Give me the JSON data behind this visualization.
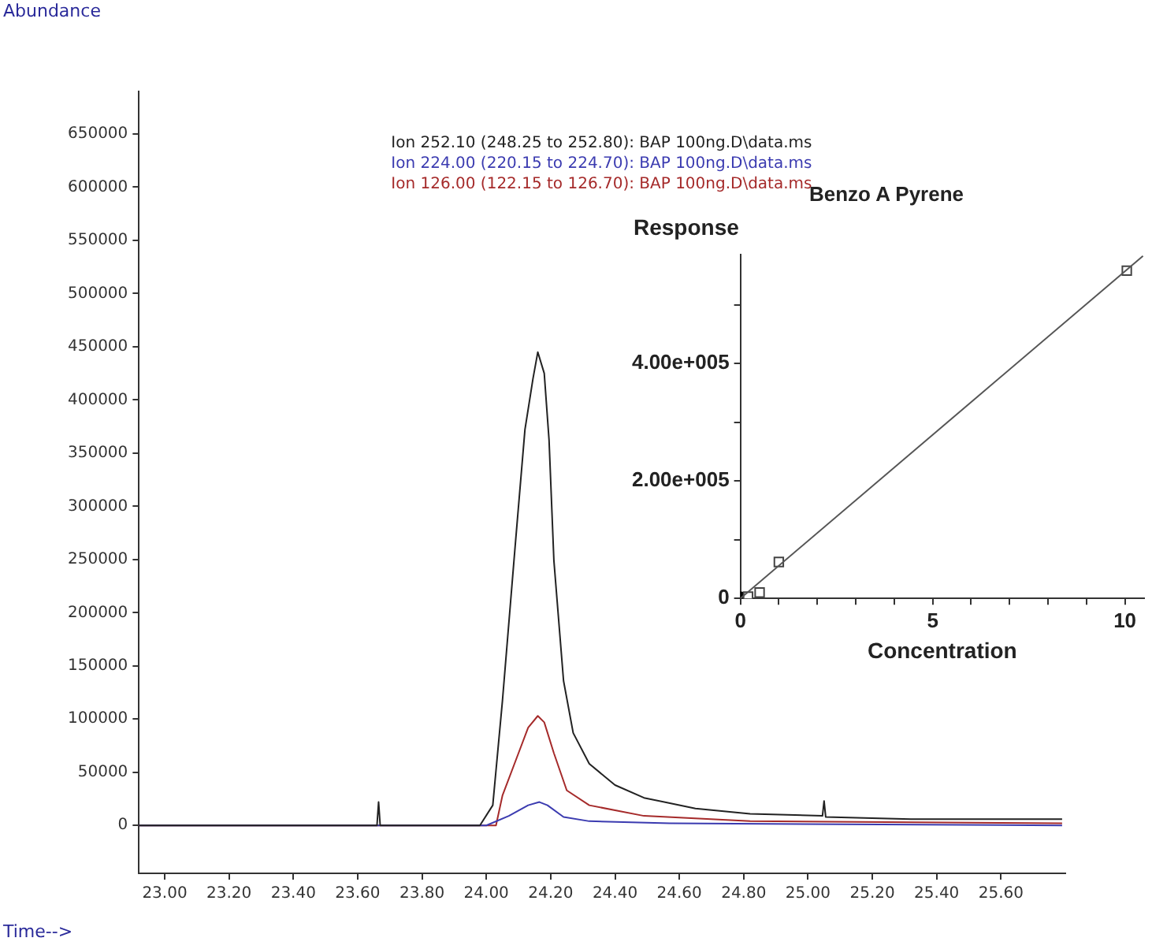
{
  "chart_data": [
    {
      "type": "line",
      "xlabel": "Time-->",
      "ylabel": "Abundance",
      "legend": "top",
      "grid": false,
      "xlim": [
        22.92,
        25.8
      ],
      "xticks": [
        {
          "value": 23,
          "label": "23.00"
        },
        {
          "value": 23.2,
          "label": "23.20"
        },
        {
          "value": 23.4,
          "label": "23.40"
        },
        {
          "value": 23.6,
          "label": "23.60"
        },
        {
          "value": 23.8,
          "label": "23.80"
        },
        {
          "value": 24,
          "label": "24.00"
        },
        {
          "value": 24.2,
          "label": "24.20"
        },
        {
          "value": 24.4,
          "label": "24.40"
        },
        {
          "value": 24.6,
          "label": "24.60"
        },
        {
          "value": 24.8,
          "label": "24.80"
        },
        {
          "value": 25,
          "label": "25.00"
        },
        {
          "value": 25.2,
          "label": "25.20"
        },
        {
          "value": 25.4,
          "label": "25.40"
        },
        {
          "value": 25.6,
          "label": "25.60"
        }
      ],
      "ylim": [
        -45000,
        690000
      ],
      "yticks": [
        0,
        50000,
        100000,
        150000,
        200000,
        250000,
        300000,
        350000,
        400000,
        450000,
        500000,
        550000,
        600000,
        650000
      ],
      "series": [
        {
          "name": "Ion 252.10 (248.25 to 252.80): BAP 100ng.D\\data.ms",
          "color": "#222222",
          "x": [
            22.92,
            23.66,
            23.665,
            23.67,
            23.98,
            24.02,
            24.05,
            24.09,
            24.12,
            24.145,
            24.16,
            24.18,
            24.195,
            24.21,
            24.24,
            24.27,
            24.32,
            24.4,
            24.49,
            24.65,
            24.82,
            25.045,
            25.05,
            25.055,
            25.32,
            25.79
          ],
          "values": [
            0,
            0,
            22000,
            0,
            0,
            19000,
            117000,
            264000,
            372000,
            420000,
            445000,
            425000,
            362000,
            249000,
            136000,
            87000,
            58000,
            38000,
            26000,
            16000,
            11000,
            9000,
            23000,
            8000,
            6000,
            6000
          ]
        },
        {
          "name": "Ion 224.00 (220.15 to 224.70): BAP 100ng.D\\data.ms",
          "color": "#3b3bb0",
          "x": [
            22.92,
            24.0,
            24.07,
            24.13,
            24.165,
            24.19,
            24.24,
            24.32,
            24.57,
            25.79
          ],
          "values": [
            0,
            0,
            9000,
            19000,
            22000,
            19000,
            8000,
            4000,
            2000,
            0
          ]
        },
        {
          "name": "Ion 126.00 (122.15 to 126.70): BAP 100ng.D\\data.ms",
          "color": "#a52a2a",
          "x": [
            22.92,
            24.03,
            24.05,
            24.1,
            24.13,
            24.16,
            24.18,
            24.21,
            24.25,
            24.32,
            24.49,
            24.82,
            25.79
          ],
          "values": [
            0,
            0,
            28000,
            68000,
            92000,
            103000,
            97000,
            68000,
            33000,
            19000,
            9000,
            4000,
            2000
          ]
        }
      ]
    },
    {
      "type": "scatter",
      "title": "Benzo A Pyrene",
      "xlabel": "Concentration",
      "ylabel": "Response",
      "grid": false,
      "xlim": [
        0,
        10.5
      ],
      "xticks": [
        0,
        {
          "value": 1,
          "label": null
        },
        {
          "value": 2,
          "label": null
        },
        {
          "value": 3,
          "label": null
        },
        {
          "value": 4,
          "label": null
        },
        5,
        {
          "value": 6,
          "label": null
        },
        {
          "value": 7,
          "label": null
        },
        {
          "value": 8,
          "label": null
        },
        {
          "value": 9,
          "label": null
        },
        10
      ],
      "ylim": [
        0,
        585000
      ],
      "yticks": [
        0,
        {
          "value": 100000,
          "label": null
        },
        {
          "value": 200000,
          "label": "2.00e+005"
        },
        {
          "value": 300000,
          "label": null
        },
        {
          "value": 400000,
          "label": "4.00e+005"
        },
        {
          "value": 500000,
          "label": null
        }
      ],
      "series": [
        {
          "type": "line",
          "color": "#555555",
          "marker": "none",
          "x": [
            0,
            10.47
          ],
          "values": [
            0,
            583000
          ]
        },
        {
          "color": "#444444",
          "marker": "square",
          "x": [
            0.2,
            0.5,
            1.0,
            10.05
          ],
          "values": [
            3000,
            10000,
            62000,
            558000
          ]
        },
        {
          "color": "#000000",
          "marker": "circle",
          "x": [
            0
          ],
          "values": [
            0
          ]
        }
      ]
    }
  ]
}
